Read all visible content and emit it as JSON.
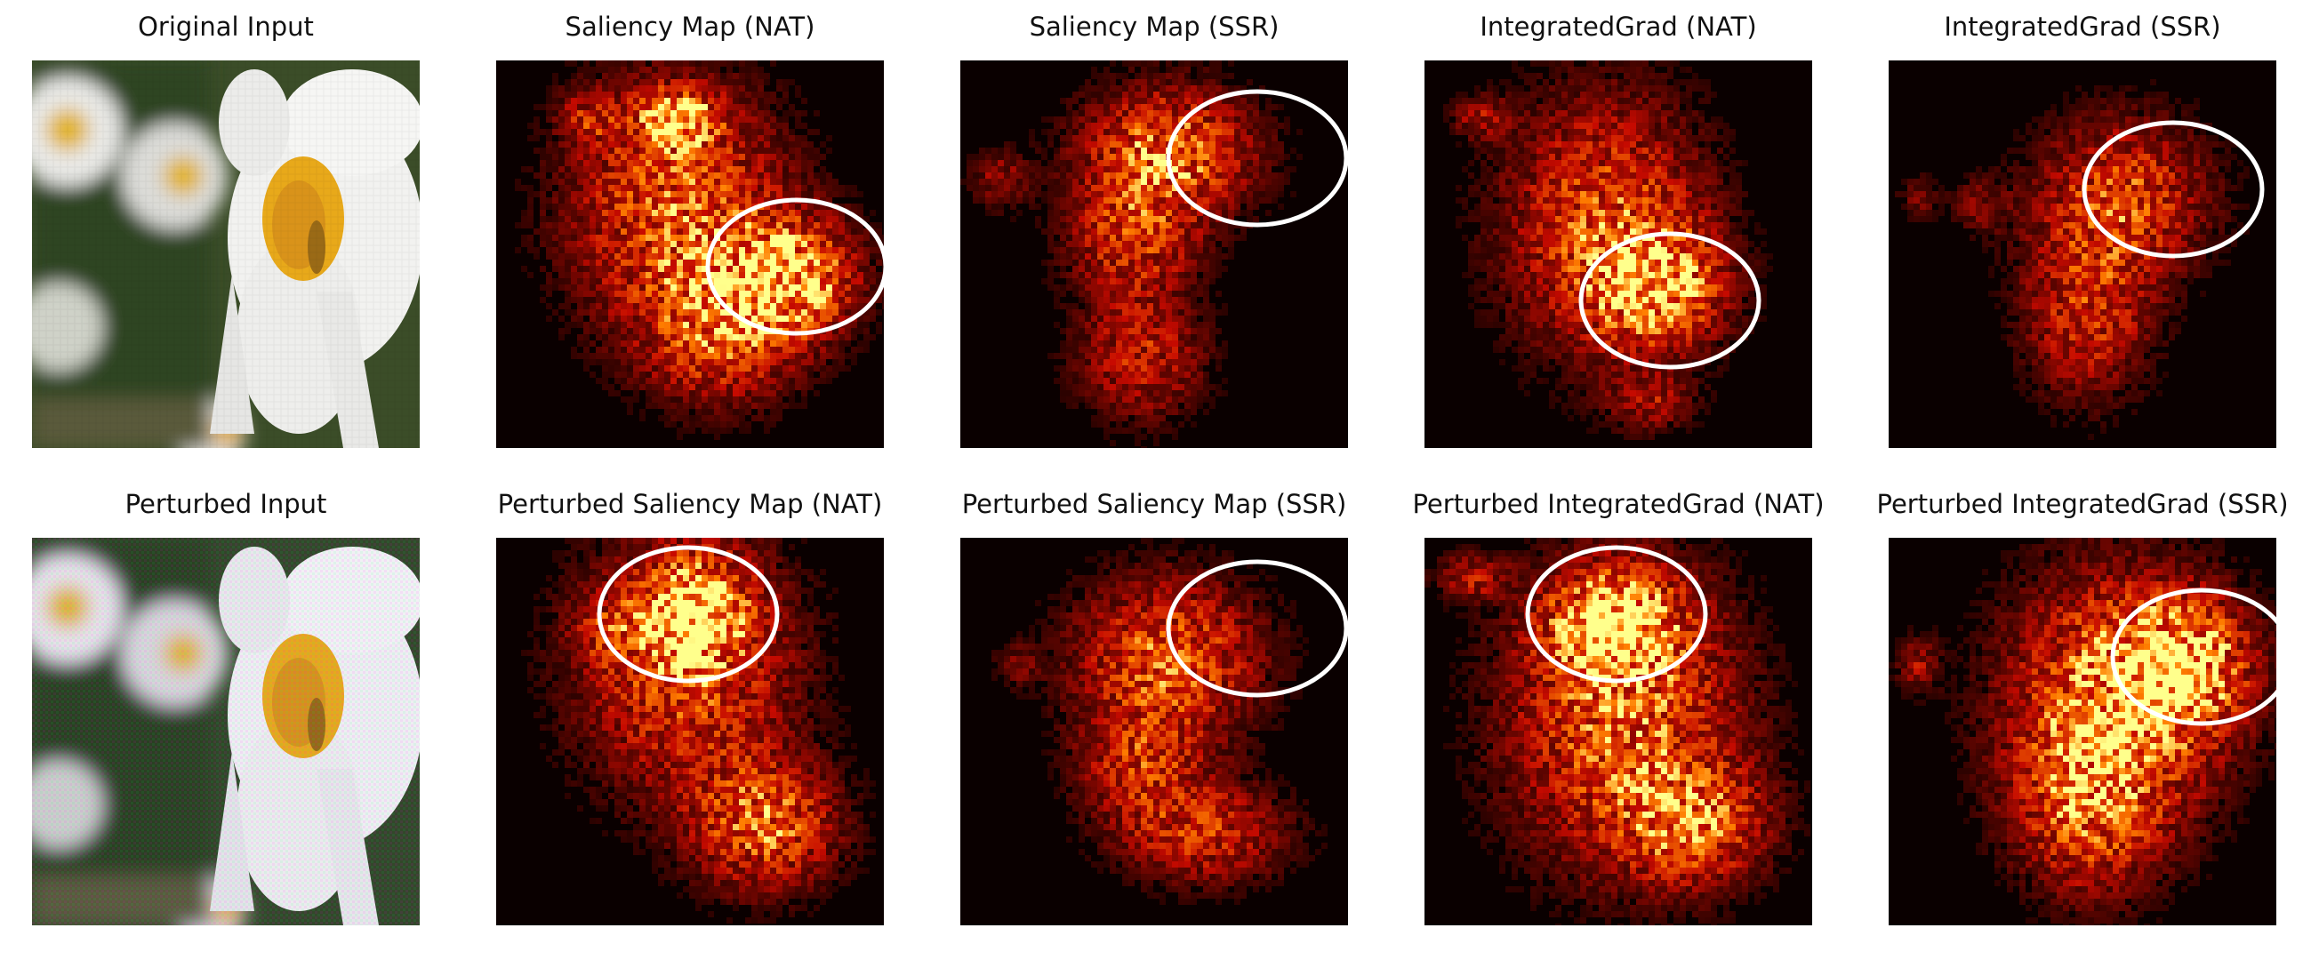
{
  "figure": {
    "rows": [
      {
        "panels": [
          {
            "id": "r0c0",
            "title": "Original Input",
            "kind": "photo"
          },
          {
            "id": "r0c1",
            "title": "Saliency Map (NAT)",
            "kind": "heatmap"
          },
          {
            "id": "r0c2",
            "title": "Saliency Map (SSR)",
            "kind": "heatmap"
          },
          {
            "id": "r0c3",
            "title": "IntegratedGrad (NAT)",
            "kind": "heatmap"
          },
          {
            "id": "r0c4",
            "title": "IntegratedGrad (SSR)",
            "kind": "heatmap"
          }
        ]
      },
      {
        "panels": [
          {
            "id": "r1c0",
            "title": "Perturbed Input",
            "kind": "photo"
          },
          {
            "id": "r1c1",
            "title": "Perturbed Saliency Map (NAT)",
            "kind": "heatmap"
          },
          {
            "id": "r1c2",
            "title": "Perturbed Saliency Map (SSR)",
            "kind": "heatmap"
          },
          {
            "id": "r1c3",
            "title": "Perturbed IntegratedGrad (NAT)",
            "kind": "heatmap"
          },
          {
            "id": "r1c4",
            "title": "Perturbed IntegratedGrad (SSR)",
            "kind": "heatmap"
          }
        ]
      }
    ],
    "colors": {
      "background": "#ffffff",
      "heat_bg": "#0a0000",
      "heat_mid": "#c01000",
      "heat_hot": "#ff8a00",
      "heat_max": "#ffff80",
      "annotation_ring": "#ffffff",
      "petal": "#f4f4f2",
      "flower_center": "#e8a91a",
      "foliage": "#3b4d28"
    }
  }
}
